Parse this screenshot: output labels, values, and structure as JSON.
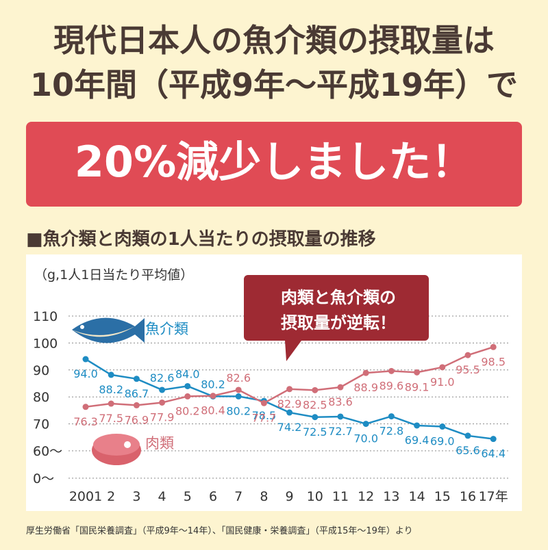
{
  "chart_data": {
    "type": "line",
    "title_lines": [
      "現代日本人の魚介類の摂取量は",
      "10年間（平成9年〜平成19年）で"
    ],
    "headline": "20%減少しました！",
    "subtitle": "■魚介類と肉類の1人当たりの摂取量の推移",
    "y_unit": "（g,1人1日当たり平均値）",
    "callout": [
      "肉類と魚介類の",
      "摂取量が逆転！"
    ],
    "source": "厚生労働省「国民栄養調査」（平成9年〜14年）、「国民健康・栄養調査」（平成15年〜19年）より",
    "categories": [
      "2001",
      "2",
      "3",
      "4",
      "5",
      "6",
      "7",
      "8",
      "9",
      "10",
      "11",
      "12",
      "13",
      "14",
      "15",
      "16",
      "17年"
    ],
    "series": [
      {
        "name": "魚介類",
        "color": "#1e8cc3",
        "values": [
          94.0,
          88.2,
          86.7,
          82.6,
          84.0,
          80.2,
          80.2,
          78.5,
          74.2,
          72.5,
          72.7,
          70.0,
          72.8,
          69.4,
          69.0,
          65.6,
          64.4
        ],
        "value_labels": [
          "94.0",
          "88.2",
          "86.7",
          "82.6",
          "84.0",
          "80.2",
          "80.2",
          "78.5",
          "74.2",
          "72.5",
          "72.7",
          "70.0",
          "72.8",
          "69.4",
          "69.0",
          "65.6",
          "64.4"
        ]
      },
      {
        "name": "肉類",
        "color": "#d06e78",
        "values": [
          76.3,
          77.5,
          76.9,
          77.9,
          80.2,
          80.4,
          82.6,
          77.7,
          82.9,
          82.5,
          83.6,
          88.9,
          89.6,
          89.1,
          91.0,
          95.5,
          98.5
        ],
        "value_labels": [
          "76.3",
          "77.5",
          "76.9",
          "77.9",
          "80.2",
          "80.4",
          "82.6",
          "77.7",
          "82.9",
          "82.5",
          "83.6",
          "88.9",
          "89.6",
          "89.1",
          "91.0",
          "95.5",
          "98.5"
        ]
      }
    ],
    "ylim": [
      0,
      110
    ],
    "axis_break": [
      0,
      60
    ],
    "yticks": [
      {
        "value": 0,
        "label": "0〜"
      },
      {
        "value": 60,
        "label": "60〜"
      },
      70,
      80,
      90,
      100,
      110
    ],
    "grid": true
  }
}
